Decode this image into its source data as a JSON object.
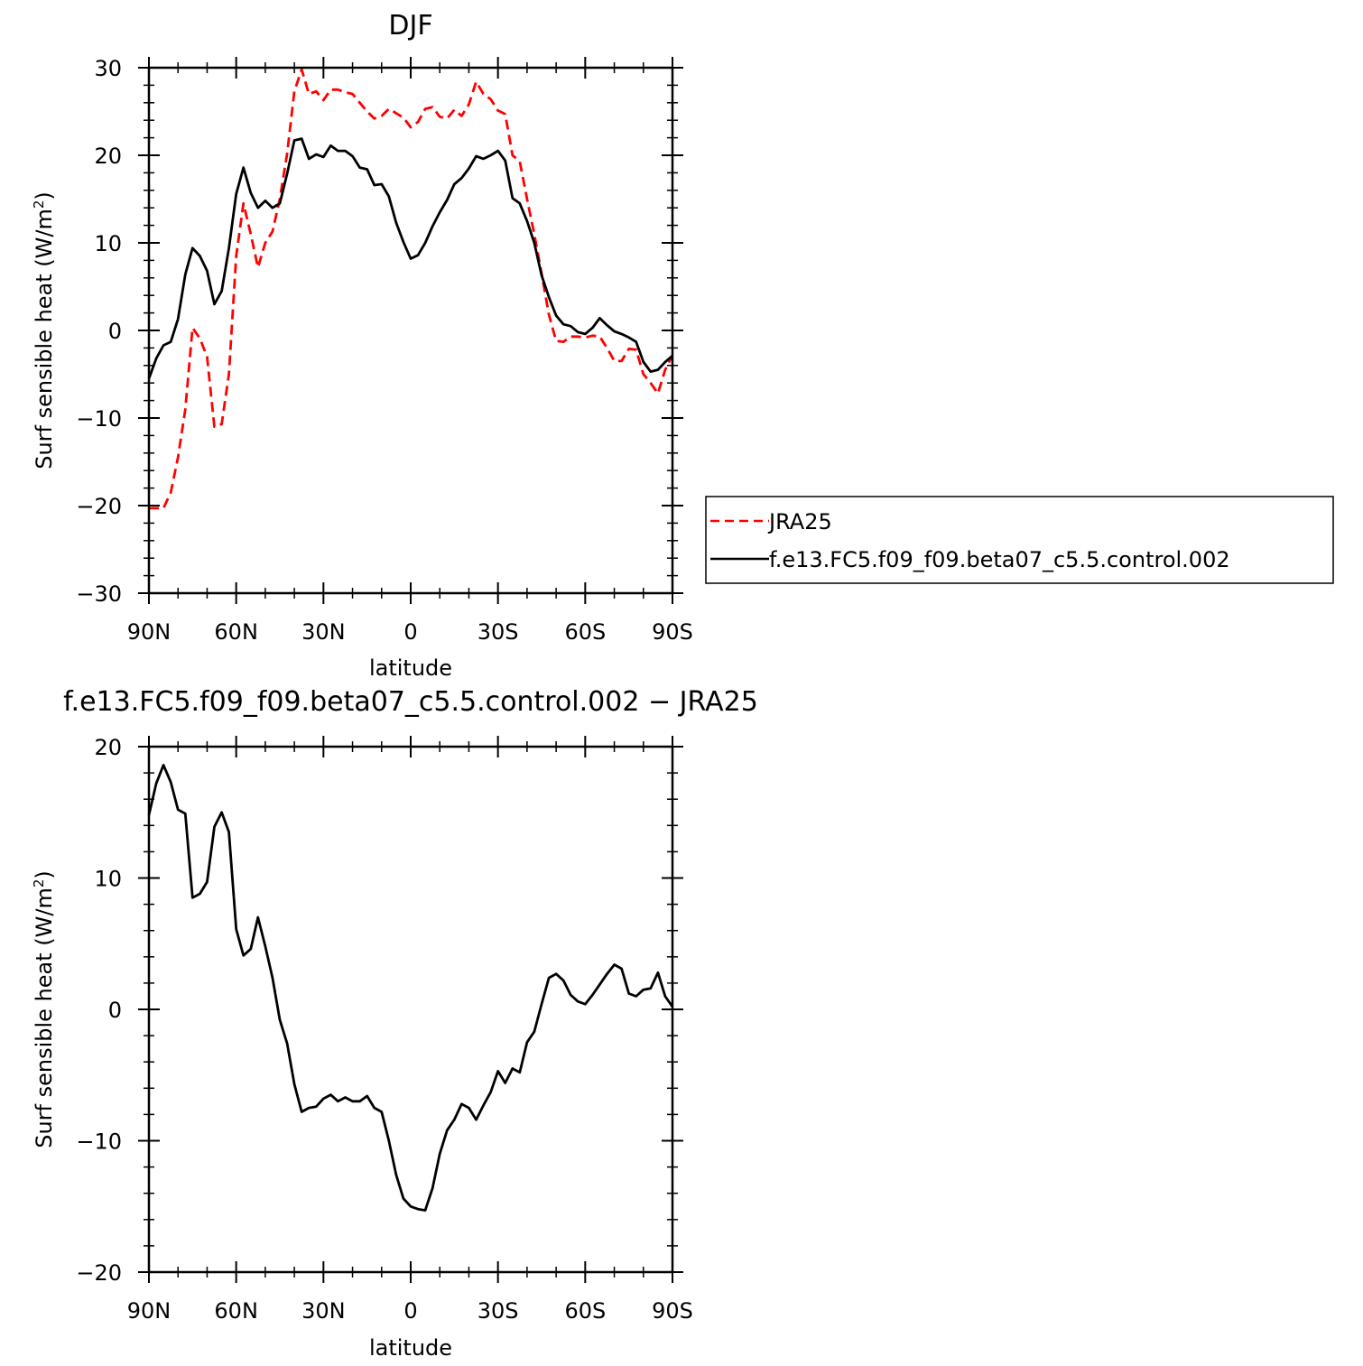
{
  "chart_data": [
    {
      "type": "line",
      "title": "DJF",
      "xlabel": "latitude",
      "ylabel": "Surf sensible heat (W/m",
      "ylabel_sup": "2",
      "ylabel_close": ")",
      "xlim": [
        90,
        -90
      ],
      "ylim": [
        -30,
        30
      ],
      "yticks": [
        -30,
        -20,
        -10,
        0,
        10,
        20,
        30
      ],
      "yticklabels": [
        "−30",
        "−20",
        "−10",
        "0",
        "10",
        "20",
        "30"
      ],
      "xticks": [
        90,
        60,
        30,
        0,
        -30,
        -60,
        -90
      ],
      "xticklabels": [
        "90N",
        "60N",
        "30N",
        "0",
        "30S",
        "60S",
        "90S"
      ],
      "legend_position": "right",
      "series": [
        {
          "name": "JRA25",
          "color": "#ff0000",
          "dash": "dashed",
          "x": [
            90,
            87.5,
            85,
            82.5,
            80,
            77.5,
            75,
            72.5,
            70,
            67.5,
            65,
            62.5,
            60,
            57.5,
            55,
            52.5,
            50,
            47.5,
            45,
            42.5,
            40,
            37.5,
            35,
            32.5,
            30,
            27.5,
            25,
            22.5,
            20,
            17.5,
            15,
            12.5,
            10,
            7.5,
            5,
            2.5,
            0,
            -2.5,
            -5,
            -7.5,
            -10,
            -12.5,
            -15,
            -17.5,
            -20,
            -22.5,
            -25,
            -27.5,
            -30,
            -32.5,
            -35,
            -37.5,
            -40,
            -42.5,
            -45,
            -47.5,
            -50,
            -52.5,
            -55,
            -57.5,
            -60,
            -62.5,
            -65,
            -67.5,
            -70,
            -72.5,
            -75,
            -77.5,
            -80,
            -82.5,
            -85,
            -87.5,
            -90
          ],
          "y": [
            -20.3,
            -20.3,
            -20.3,
            -18.5,
            -14.5,
            -9.0,
            0.3,
            -0.9,
            -3.0,
            -11.0,
            -10.7,
            -5.0,
            8.5,
            14.5,
            11.0,
            7.2,
            10.0,
            11.3,
            15.0,
            20.2,
            27.3,
            29.8,
            27.0,
            27.3,
            26.3,
            27.5,
            27.5,
            27.2,
            27.0,
            26.0,
            25.0,
            24.2,
            24.5,
            25.3,
            24.8,
            24.3,
            23.2,
            23.8,
            25.3,
            25.5,
            24.4,
            24.2,
            25.2,
            24.5,
            25.8,
            28.4,
            27.0,
            26.4,
            25.1,
            24.7,
            20.0,
            19.3,
            15.0,
            11.0,
            6.5,
            1.8,
            -1.2,
            -1.3,
            -0.7,
            -0.7,
            -0.8,
            -0.6,
            -0.7,
            -2.0,
            -3.5,
            -3.5,
            -2.1,
            -2.2,
            -5.0,
            -6.0,
            -7.2,
            -4.5,
            -2.8
          ]
        },
        {
          "name": "f.e13.FC5.f09_f09.beta07_c5.5.control.002",
          "color": "#000000",
          "dash": "solid",
          "x": [
            90,
            87.5,
            85,
            82.5,
            80,
            77.5,
            75,
            72.5,
            70,
            67.5,
            65,
            62.5,
            60,
            57.5,
            55,
            52.5,
            50,
            47.5,
            45,
            42.5,
            40,
            37.5,
            35,
            32.5,
            30,
            27.5,
            25,
            22.5,
            20,
            17.5,
            15,
            12.5,
            10,
            7.5,
            5,
            2.5,
            0,
            -2.5,
            -5,
            -7.5,
            -10,
            -12.5,
            -15,
            -17.5,
            -20,
            -22.5,
            -25,
            -27.5,
            -30,
            -32.5,
            -35,
            -37.5,
            -40,
            -42.5,
            -45,
            -47.5,
            -50,
            -52.5,
            -55,
            -57.5,
            -60,
            -62.5,
            -65,
            -67.5,
            -70,
            -72.5,
            -75,
            -77.5,
            -80,
            -82.5,
            -85,
            -87.5,
            -90
          ],
          "y": [
            -5.5,
            -3.2,
            -1.7,
            -1.3,
            1.3,
            6.4,
            9.4,
            8.5,
            6.8,
            3.0,
            4.5,
            9.4,
            15.6,
            18.6,
            15.7,
            14.0,
            14.8,
            14.0,
            14.5,
            17.9,
            21.7,
            21.9,
            19.6,
            20.1,
            19.8,
            21.1,
            20.5,
            20.5,
            19.9,
            18.6,
            18.4,
            16.6,
            16.7,
            15.3,
            12.3,
            10.1,
            8.2,
            8.6,
            10.0,
            11.9,
            13.5,
            14.9,
            16.7,
            17.4,
            18.5,
            19.9,
            19.6,
            20.0,
            20.5,
            19.4,
            15.1,
            14.5,
            12.5,
            10.0,
            6.3,
            3.8,
            1.7,
            0.7,
            0.5,
            -0.2,
            -0.4,
            0.3,
            1.4,
            0.6,
            -0.1,
            -0.4,
            -0.8,
            -1.3,
            -3.6,
            -4.7,
            -4.5,
            -3.6,
            -2.9
          ]
        }
      ]
    },
    {
      "type": "line",
      "title": "f.e13.FC5.f09_f09.beta07_c5.5.control.002 − JRA25",
      "xlabel": "latitude",
      "ylabel": "Surf sensible heat (W/m",
      "ylabel_sup": "2",
      "ylabel_close": ")",
      "xlim": [
        90,
        -90
      ],
      "ylim": [
        -20,
        20
      ],
      "yticks": [
        -20,
        -10,
        0,
        10,
        20
      ],
      "yticklabels": [
        "−20",
        "−10",
        "0",
        "10",
        "20"
      ],
      "xticks": [
        90,
        60,
        30,
        0,
        -30,
        -60,
        -90
      ],
      "xticklabels": [
        "90N",
        "60N",
        "30N",
        "0",
        "30S",
        "60S",
        "90S"
      ],
      "series": [
        {
          "color": "#000000",
          "dash": "solid",
          "x": [
            90,
            87.5,
            85,
            82.5,
            80,
            77.5,
            75,
            72.5,
            70,
            67.5,
            65,
            62.5,
            60,
            57.5,
            55,
            52.5,
            50,
            47.5,
            45,
            42.5,
            40,
            37.5,
            35,
            32.5,
            30,
            27.5,
            25,
            22.5,
            20,
            17.5,
            15,
            12.5,
            10,
            7.5,
            5,
            2.5,
            0,
            -2.5,
            -5,
            -7.5,
            -10,
            -12.5,
            -15,
            -17.5,
            -20,
            -22.5,
            -25,
            -27.5,
            -30,
            -32.5,
            -35,
            -37.5,
            -40,
            -42.5,
            -45,
            -47.5,
            -50,
            -52.5,
            -55,
            -57.5,
            -60,
            -62.5,
            -65,
            -67.5,
            -70,
            -72.5,
            -75,
            -77.5,
            -80,
            -82.5,
            -85,
            -87.5,
            -90
          ],
          "y": [
            14.8,
            17.2,
            18.6,
            17.3,
            15.2,
            14.9,
            8.5,
            8.8,
            9.7,
            13.9,
            15.0,
            13.5,
            6.1,
            4.1,
            4.6,
            7.0,
            4.8,
            2.4,
            -0.8,
            -2.6,
            -5.7,
            -7.8,
            -7.5,
            -7.4,
            -6.8,
            -6.5,
            -7.0,
            -6.7,
            -7.0,
            -7.0,
            -6.6,
            -7.5,
            -7.8,
            -10.0,
            -12.6,
            -14.4,
            -15.0,
            -15.2,
            -15.3,
            -13.6,
            -11.0,
            -9.2,
            -8.4,
            -7.2,
            -7.5,
            -8.4,
            -7.3,
            -6.3,
            -4.7,
            -5.6,
            -4.5,
            -4.8,
            -2.5,
            -1.7,
            0.4,
            2.4,
            2.7,
            2.2,
            1.1,
            0.6,
            0.4,
            1.1,
            1.9,
            2.7,
            3.4,
            3.1,
            1.2,
            1.0,
            1.5,
            1.6,
            2.8,
            1.0,
            0.2
          ]
        }
      ]
    }
  ]
}
